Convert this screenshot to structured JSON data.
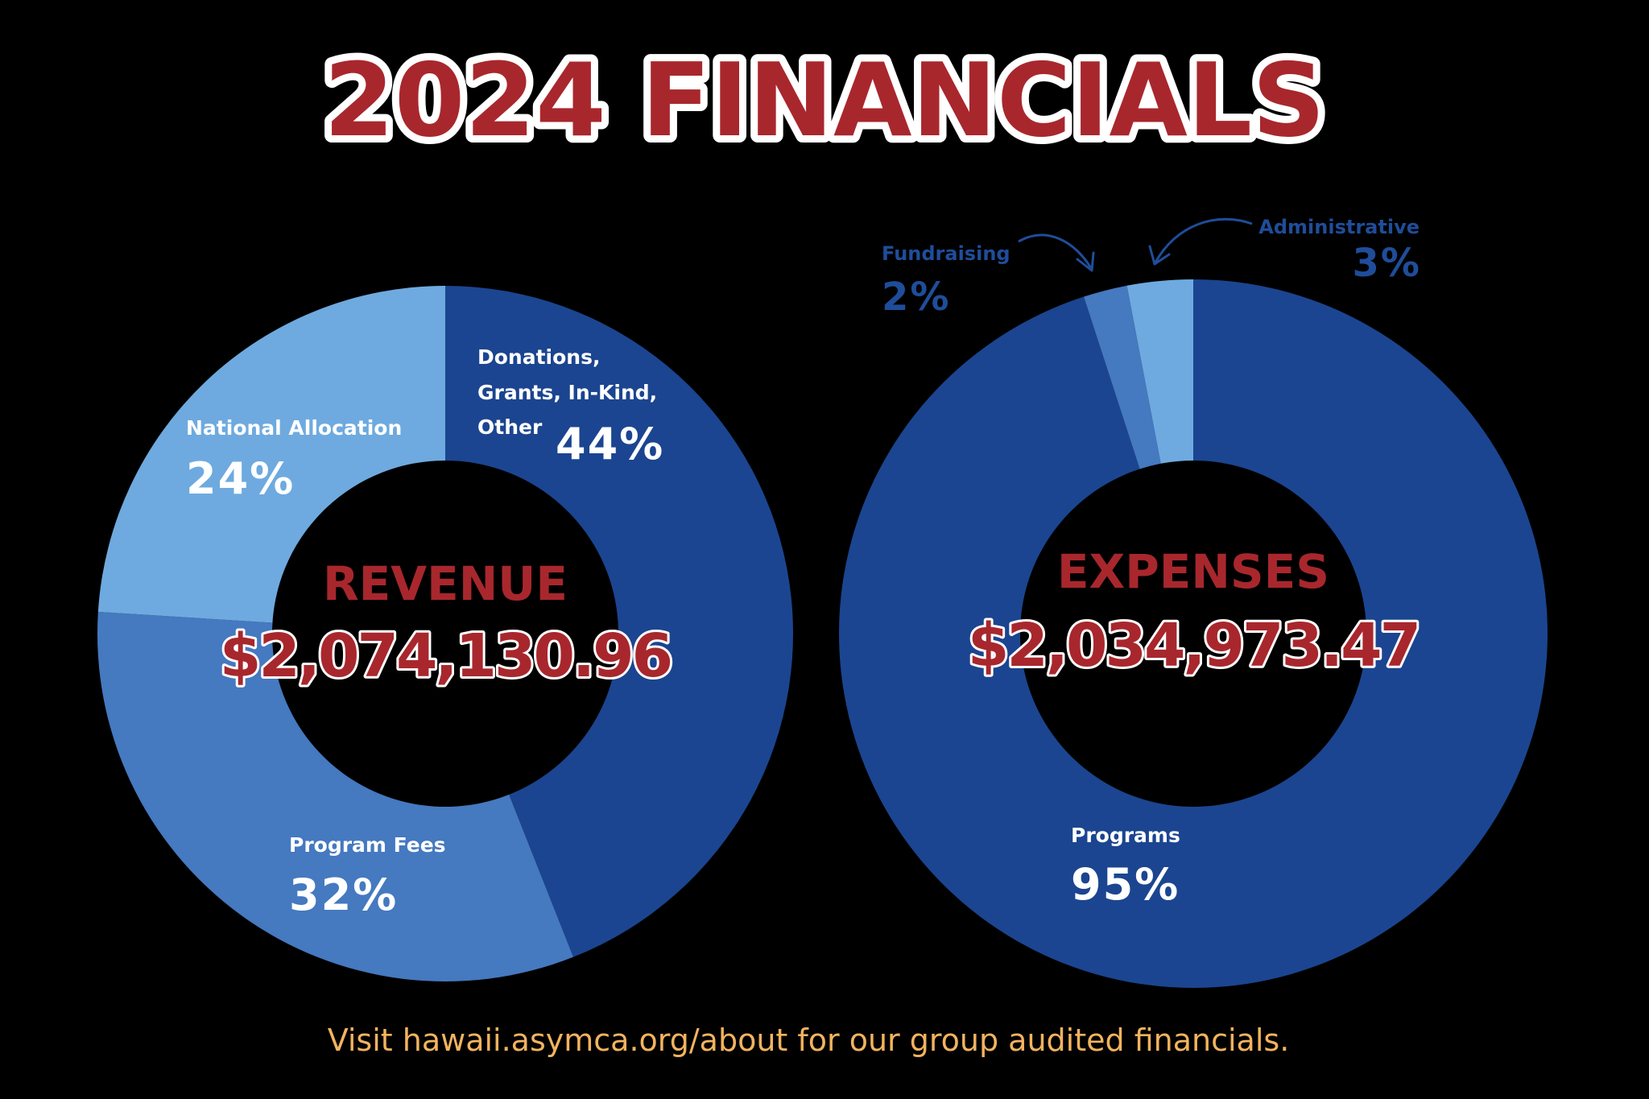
{
  "title": "2024 FINANCIALS",
  "footer": "Visit hawaii.asymca.org/about for our group audited financials.",
  "colors": {
    "title_fill": "#a8272d",
    "title_outline": "#ffffff",
    "center_label": "#a8272d",
    "dark_blue": "#1b4590",
    "mid_blue": "#4579c0",
    "light_blue": "#6eaadf",
    "callout_text": "#1f4d9a",
    "footer_text": "#f3b35f",
    "background": "#000000"
  },
  "chart_data": [
    {
      "type": "pie",
      "donut": true,
      "title": "REVENUE",
      "total": "$2,074,130.96",
      "slices": [
        {
          "label": "Donations, Grants, In-Kind, Other",
          "label_lines": [
            "Donations,",
            "Grants, In-Kind,",
            "Other"
          ],
          "value": 44,
          "display": "44%",
          "color": "#1b4590"
        },
        {
          "label": "Program Fees",
          "label_lines": [
            "Program Fees"
          ],
          "value": 32,
          "display": "32%",
          "color": "#4579c0"
        },
        {
          "label": "National Allocation",
          "label_lines": [
            "National Allocation"
          ],
          "value": 24,
          "display": "24%",
          "color": "#6eaadf"
        }
      ]
    },
    {
      "type": "pie",
      "donut": true,
      "title": "EXPENSES",
      "total": "$2,034,973.47",
      "slices": [
        {
          "label": "Programs",
          "label_lines": [
            "Programs"
          ],
          "value": 95,
          "display": "95%",
          "color": "#1b4590"
        },
        {
          "label": "Fundraising",
          "label_lines": [
            "Fundraising"
          ],
          "value": 2,
          "display": "2%",
          "color": "#4579c0"
        },
        {
          "label": "Administrative",
          "label_lines": [
            "Administrative"
          ],
          "value": 3,
          "display": "3%",
          "color": "#6eaadf"
        }
      ]
    }
  ]
}
